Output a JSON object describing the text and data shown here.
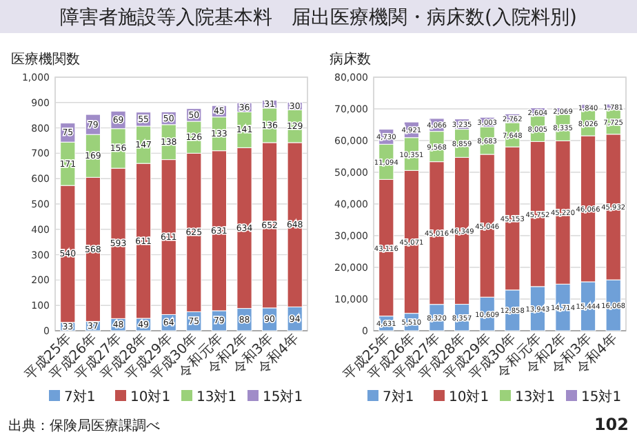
{
  "chart_data": [
    {
      "type": "bar",
      "stacked": true,
      "title": "障害者施設等入院基本料　届出医療機関・病床数(入院料別)",
      "ylabel": "医療機関数",
      "categories": [
        "平成25年",
        "平成26年",
        "平成27年",
        "平成28年",
        "平成29年",
        "平成30年",
        "令和元年",
        "令和2年",
        "令和3年",
        "令和4年"
      ],
      "series": [
        {
          "name": "7対1",
          "color": "#6fa0d8",
          "values": [
            33,
            37,
            48,
            49,
            64,
            75,
            79,
            88,
            90,
            94
          ]
        },
        {
          "name": "10対1",
          "color": "#c0504d",
          "values": [
            540,
            568,
            593,
            611,
            611,
            625,
            631,
            634,
            652,
            648
          ]
        },
        {
          "name": "13対1",
          "color": "#9bd17a",
          "values": [
            171,
            169,
            156,
            147,
            138,
            126,
            133,
            141,
            136,
            129
          ]
        },
        {
          "name": "15対1",
          "color": "#a08cc8",
          "values": [
            75,
            79,
            69,
            55,
            50,
            50,
            45,
            36,
            31,
            30
          ]
        }
      ],
      "ylim": [
        0,
        1000
      ],
      "yticks": [
        0,
        100,
        200,
        300,
        400,
        500,
        600,
        700,
        800,
        900,
        {
          "value": 1000,
          "label": "1,000"
        }
      ],
      "grid": "y",
      "legend": "bottom",
      "data_labels": true,
      "annotations": [
        "出典：保険局医療課調べ"
      ]
    },
    {
      "type": "bar",
      "stacked": true,
      "ylabel": "病床数",
      "categories": [
        "平成25年",
        "平成26年",
        "平成27年",
        "平成28年",
        "平成29年",
        "平成30年",
        "令和元年",
        "令和2年",
        "令和3年",
        "令和4年"
      ],
      "series": [
        {
          "name": "7対1",
          "color": "#6fa0d8",
          "values": [
            4631,
            5510,
            8320,
            8357,
            10609,
            12858,
            13943,
            14714,
            15444,
            16068
          ],
          "value_labels": [
            "4,631",
            "5,510",
            "8,320",
            "8,357",
            "10,609",
            "12,858",
            "13,943",
            "14,714",
            "15,444",
            "16,068"
          ]
        },
        {
          "name": "10対1",
          "color": "#c0504d",
          "values": [
            43116,
            45071,
            45016,
            46349,
            45046,
            45153,
            45752,
            45220,
            46066,
            45932
          ],
          "value_labels": [
            "43,116",
            "45,071",
            "45,016",
            "46,349",
            "45,046",
            "45,153",
            "45,752",
            "45,220",
            "46,066",
            "45,932"
          ]
        },
        {
          "name": "13対1",
          "color": "#9bd17a",
          "values": [
            11094,
            10351,
            9568,
            8859,
            8683,
            7648,
            8005,
            8335,
            8026,
            7725
          ],
          "value_labels": [
            "11,094",
            "10,351",
            "9,568",
            "8,859",
            "8,683",
            "7,648",
            "8,005",
            "8,335",
            "8,026",
            "7,725"
          ]
        },
        {
          "name": "15対1",
          "color": "#a08cc8",
          "values": [
            4730,
            4921,
            4066,
            3235,
            3003,
            2762,
            2604,
            2069,
            1840,
            1781
          ],
          "value_labels": [
            "4,730",
            "4,921",
            "4,066",
            "3,235",
            "3,003",
            "2,762",
            "2,604",
            "2,069",
            "1,840",
            "1,781"
          ]
        }
      ],
      "ylim": [
        0,
        80000
      ],
      "yticks": [
        0,
        {
          "value": 10000,
          "label": "10,000"
        },
        {
          "value": 20000,
          "label": "20,000"
        },
        {
          "value": 30000,
          "label": "30,000"
        },
        {
          "value": 40000,
          "label": "40,000"
        },
        {
          "value": 50000,
          "label": "50,000"
        },
        {
          "value": 60000,
          "label": "60,000"
        },
        {
          "value": 70000,
          "label": "70,000"
        },
        {
          "value": 80000,
          "label": "80,000"
        }
      ],
      "grid": "y",
      "legend": "bottom",
      "annotations": [
        "102"
      ]
    }
  ]
}
